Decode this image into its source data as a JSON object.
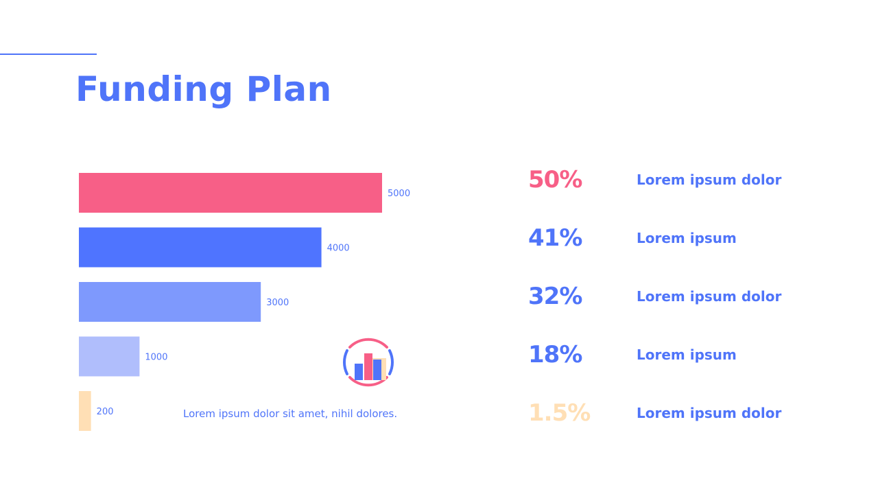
{
  "title": "Funding Plan",
  "caption": "Lorem ipsum dolor sit amet, nihil dolores.",
  "colors": {
    "brand": "#4f74f9",
    "pink": "#f75f87",
    "blue": "#4f74ff",
    "mid_blue": "#7e99fd",
    "light_blue": "#b0befc",
    "peach": "#ffdfb5"
  },
  "icon": "bar-chart-badge-icon",
  "stats": [
    {
      "percent": "50%",
      "label": "Lorem ipsum dolor",
      "color": "#f75f87"
    },
    {
      "percent": "41%",
      "label": "Lorem ipsum",
      "color": "#4f74f9"
    },
    {
      "percent": "32%",
      "label": "Lorem ipsum dolor",
      "color": "#4f74f9"
    },
    {
      "percent": "18%",
      "label": "Lorem ipsum",
      "color": "#4f74f9"
    },
    {
      "percent": "1.5%",
      "label": "Lorem ipsum dolor",
      "color": "#ffdfb5"
    }
  ],
  "chart_data": {
    "type": "bar",
    "orientation": "horizontal",
    "values": [
      5000,
      4000,
      3000,
      1000,
      200
    ],
    "colors": [
      "#f75f87",
      "#4f74ff",
      "#7e99fd",
      "#b0befc",
      "#ffdfb5"
    ],
    "xlim": [
      0,
      5000
    ],
    "grid": false,
    "legend": "none"
  }
}
